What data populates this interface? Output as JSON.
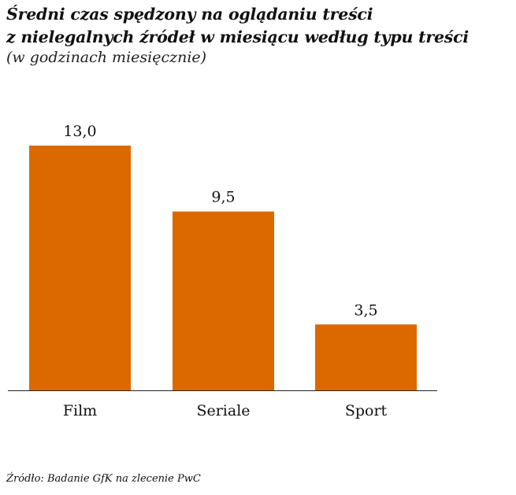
{
  "chart_data": {
    "type": "bar",
    "title_lines": [
      "Średni czas spędzony na oglądaniu treści",
      "z nielegalnych źródeł w miesiącu według typu treści"
    ],
    "subtitle": "(w godzinach miesięcznie)",
    "categories": [
      "Film",
      "Seriale",
      "Sport"
    ],
    "values": [
      13.0,
      9.5,
      3.5
    ],
    "data_labels": [
      "13,0",
      "9,5",
      "3,5"
    ],
    "ylim": [
      0,
      13
    ],
    "grid": false,
    "bar_color": "#dc6900",
    "source": "Źródło: Badanie GfK na zlecenie PwC"
  }
}
